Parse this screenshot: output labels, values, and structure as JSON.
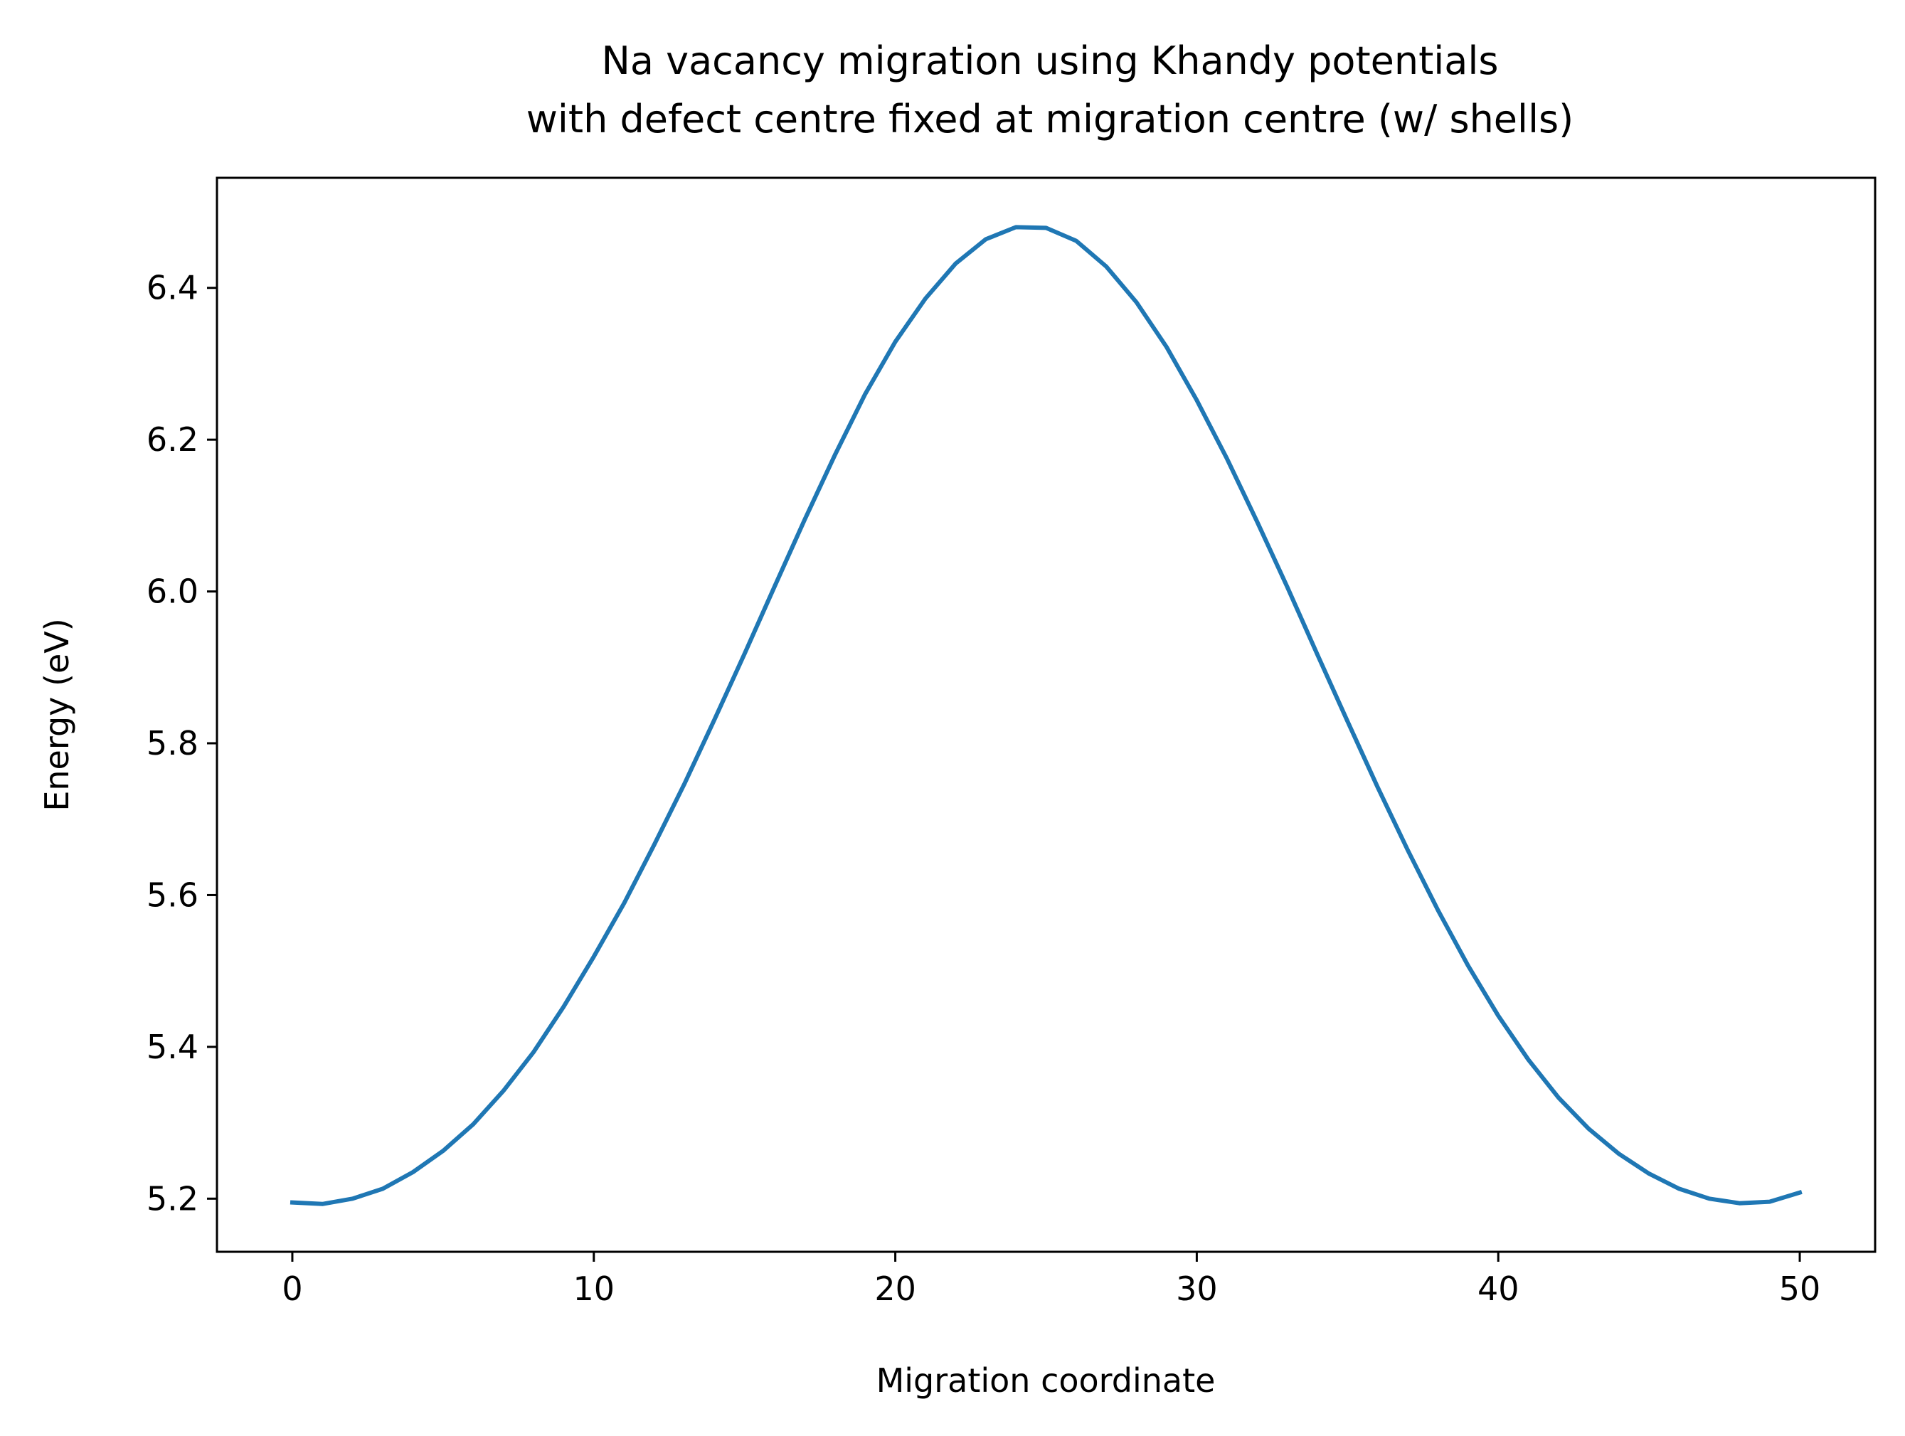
{
  "chart_data": {
    "type": "line",
    "title_line1": "Na vacancy migration using Khandy potentials",
    "title_line2": "with defect centre fixed at migration centre (w/ shells)",
    "xlabel": "Migration coordinate",
    "ylabel": "Energy (eV)",
    "xlim": [
      -2.5,
      52.5
    ],
    "ylim": [
      5.13,
      6.545
    ],
    "xticks": [
      0,
      10,
      20,
      30,
      40,
      50
    ],
    "yticks": [
      5.2,
      5.4,
      5.6,
      5.8,
      6.0,
      6.2,
      6.4
    ],
    "grid": false,
    "line_color": "#1f77b4",
    "series": [
      {
        "x": [
          0,
          1,
          2,
          3,
          4,
          5,
          6,
          7,
          8,
          9,
          10,
          11,
          12,
          13,
          14,
          15,
          16,
          17,
          18,
          19,
          20,
          21,
          22,
          23,
          24,
          25,
          26,
          27,
          28,
          29,
          30,
          31,
          32,
          33,
          34,
          35,
          36,
          37,
          38,
          39,
          40,
          41,
          42,
          43,
          44,
          45,
          46,
          47,
          48,
          49,
          50
        ],
        "values": [
          5.195,
          5.193,
          5.2,
          5.213,
          5.235,
          5.263,
          5.298,
          5.342,
          5.393,
          5.453,
          5.519,
          5.589,
          5.666,
          5.746,
          5.831,
          5.918,
          6.007,
          6.095,
          6.18,
          6.26,
          6.329,
          6.386,
          6.432,
          6.464,
          6.48,
          6.479,
          6.462,
          6.428,
          6.381,
          6.322,
          6.252,
          6.175,
          6.092,
          6.006,
          5.917,
          5.829,
          5.742,
          5.659,
          5.58,
          5.507,
          5.441,
          5.383,
          5.333,
          5.292,
          5.259,
          5.233,
          5.213,
          5.2,
          5.194,
          5.196,
          5.208
        ]
      }
    ]
  }
}
